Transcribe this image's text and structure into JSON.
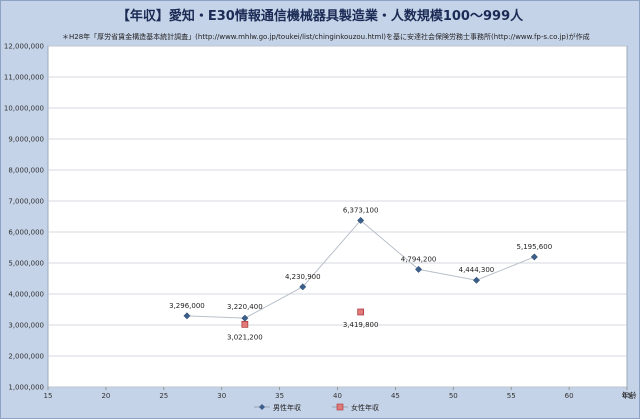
{
  "chart_data": {
    "type": "line",
    "title": "【年収】愛知・E30情報通信機械器具製造業・人数規模100～999人",
    "subtitle": "＊H28年「厚労省賃金構造基本統計調査」(http://www.mhlw.go.jp/toukei/list/chinginkouzou.html)を基に安達社会保険労務士事務所(http://www.fp-s.co.jp)が作成",
    "xlabel": "年齢",
    "ylabel": "",
    "xlim": [
      15,
      65
    ],
    "ylim": [
      1000000,
      12000000
    ],
    "x_ticks": [
      15,
      20,
      25,
      30,
      35,
      40,
      45,
      50,
      55,
      60,
      65
    ],
    "y_ticks": [
      "1,000,000",
      "2,000,000",
      "3,000,000",
      "4,000,000",
      "5,000,000",
      "6,000,000",
      "7,000,000",
      "8,000,000",
      "9,000,000",
      "10,000,000",
      "11,000,000",
      "12,000,000"
    ],
    "grid": "horizontal",
    "legend_position": "bottom",
    "series": [
      {
        "name": "男性年収",
        "color": "#3b5f8a",
        "marker": "diamond",
        "line": true,
        "points": [
          {
            "x": 27,
            "y": 3296000,
            "label": "3,296,000"
          },
          {
            "x": 32,
            "y": 3220400,
            "label": "3,220,400"
          },
          {
            "x": 37,
            "y": 4230900,
            "label": "4,230,900"
          },
          {
            "x": 42,
            "y": 6373100,
            "label": "6,373,100"
          },
          {
            "x": 47,
            "y": 4794200,
            "label": "4,794,200"
          },
          {
            "x": 52,
            "y": 4444300,
            "label": "4,444,300"
          },
          {
            "x": 57,
            "y": 5195600,
            "label": "5,195,600"
          }
        ]
      },
      {
        "name": "女性年収",
        "color": "#e07a7a",
        "marker": "square",
        "line": false,
        "points": [
          {
            "x": 32,
            "y": 3021200,
            "label": "3,021,200"
          },
          {
            "x": 42,
            "y": 3419800,
            "label": "3,419,800"
          }
        ]
      }
    ]
  }
}
